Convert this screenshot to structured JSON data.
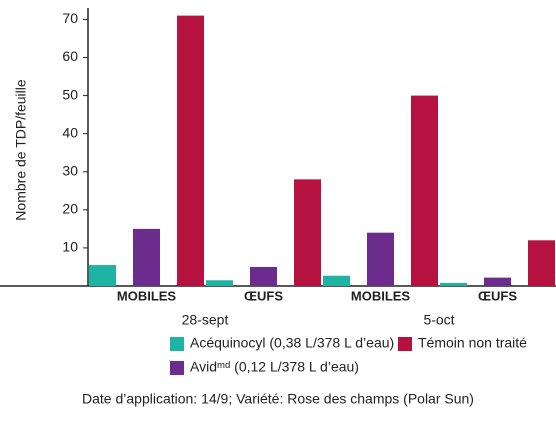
{
  "chart_data": {
    "type": "bar",
    "y_label": "Nombre de TDP/feuille",
    "categories": [
      "MOBILES",
      "ŒUFS",
      "MOBILES",
      "ŒUFS"
    ],
    "group_labels": [
      "28-sept",
      "5-oct"
    ],
    "series": [
      {
        "name": "Acéquinocyl (0,38 L/378 L d’eau)",
        "color": "#1fb3a6",
        "values": [
          5.5,
          1.5,
          2.7,
          0.8
        ]
      },
      {
        "name": "Avidᵐᵈ (0,12 L/378 L d’eau)",
        "color": "#6b2c8e",
        "values": [
          15,
          5,
          14,
          2.2
        ]
      },
      {
        "name": "Témoin non traité",
        "color": "#b5123f",
        "values": [
          71,
          28,
          50,
          12
        ]
      }
    ],
    "ylim": [
      0,
      73
    ],
    "yticks": [
      10,
      20,
      30,
      40,
      50,
      60,
      70
    ],
    "grid": false,
    "note": "Date d’application: 14/9; Variété: Rose des champs (Polar Sun)"
  }
}
